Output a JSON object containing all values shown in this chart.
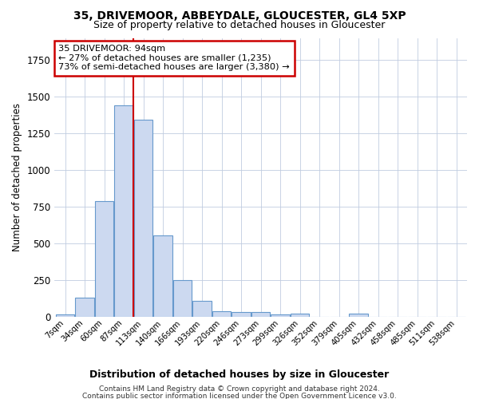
{
  "title1": "35, DRIVEMOOR, ABBEYDALE, GLOUCESTER, GL4 5XP",
  "title2": "Size of property relative to detached houses in Gloucester",
  "xlabel": "Distribution of detached houses by size in Gloucester",
  "ylabel": "Number of detached properties",
  "bar_color": "#ccd9f0",
  "bar_edge_color": "#6699cc",
  "grid_color": "#c0cce0",
  "vline_color": "#cc0000",
  "vline_x_idx": 3,
  "annotation_line1": "35 DRIVEMOOR: 94sqm",
  "annotation_line2": "← 27% of detached houses are smaller (1,235)",
  "annotation_line3": "73% of semi-detached houses are larger (3,380) →",
  "annotation_box_color": "#cc0000",
  "annotation_bg": "white",
  "categories": [
    "7sqm",
    "34sqm",
    "60sqm",
    "87sqm",
    "113sqm",
    "140sqm",
    "166sqm",
    "193sqm",
    "220sqm",
    "246sqm",
    "273sqm",
    "299sqm",
    "326sqm",
    "352sqm",
    "379sqm",
    "405sqm",
    "432sqm",
    "458sqm",
    "485sqm",
    "511sqm",
    "538sqm"
  ],
  "values": [
    15,
    128,
    785,
    1440,
    1340,
    555,
    250,
    108,
    35,
    30,
    30,
    15,
    20,
    0,
    0,
    20,
    0,
    0,
    0,
    0,
    0
  ],
  "footer1": "Contains HM Land Registry data © Crown copyright and database right 2024.",
  "footer2": "Contains public sector information licensed under the Open Government Licence v3.0.",
  "ylim": [
    0,
    1900
  ],
  "bg_color": "#ffffff"
}
